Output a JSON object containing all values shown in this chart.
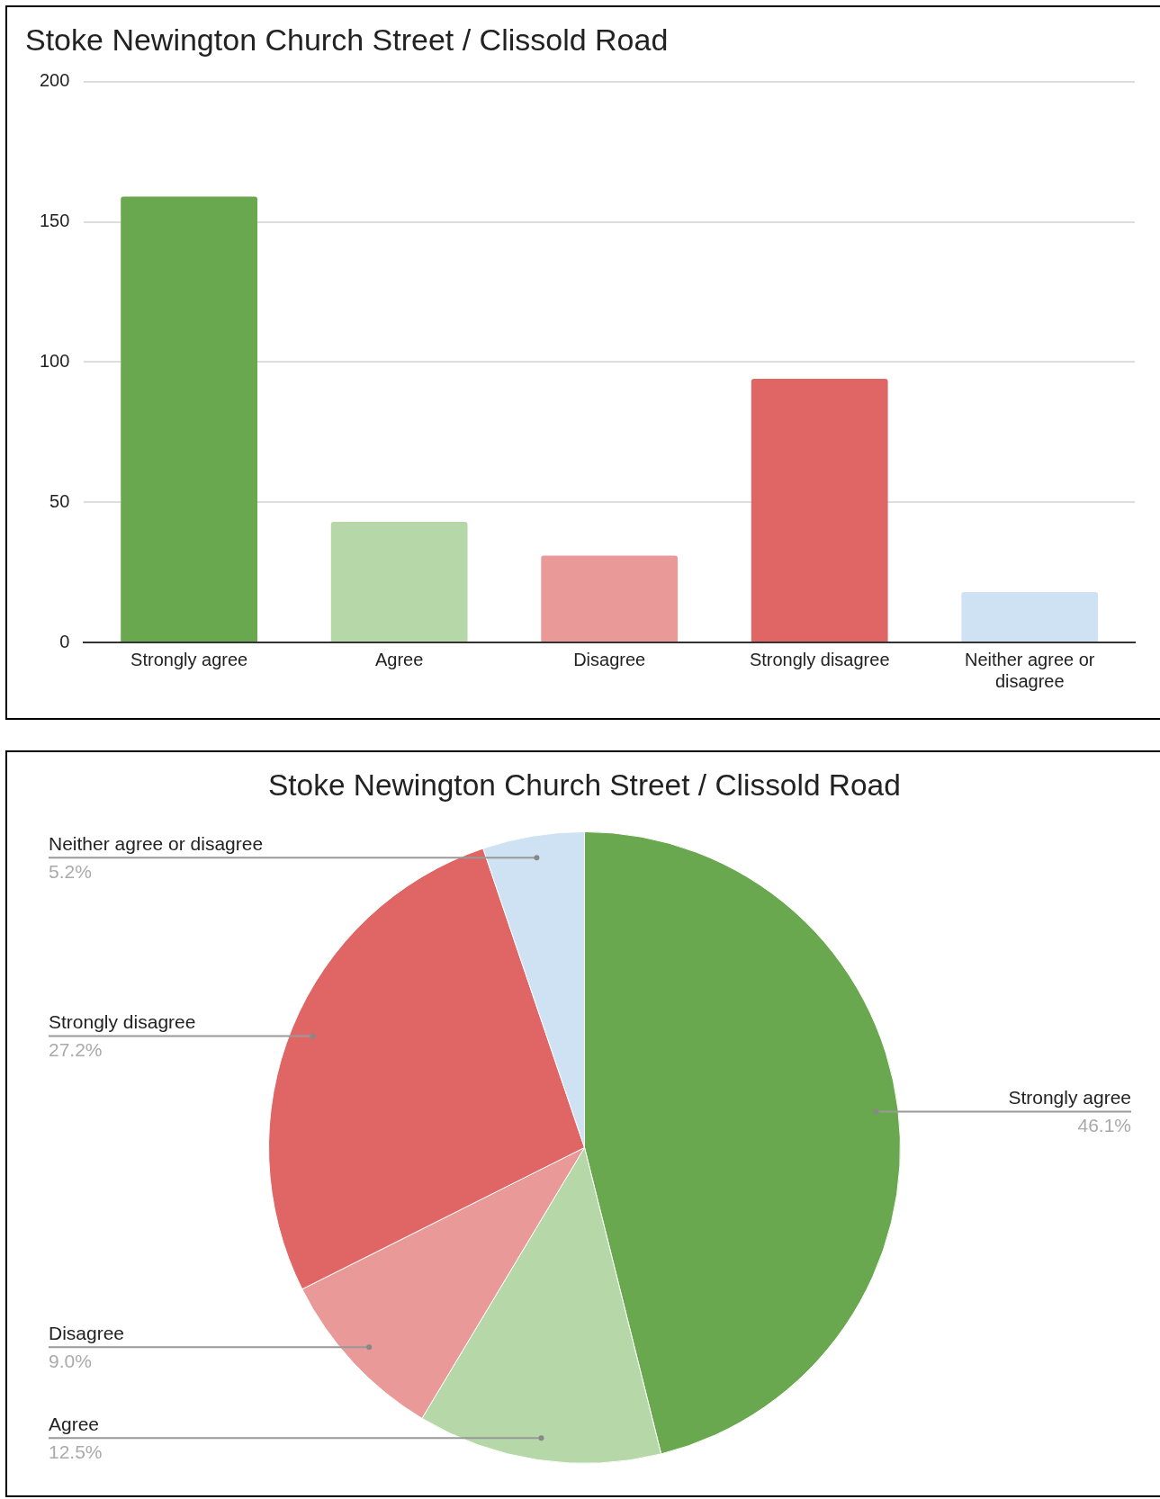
{
  "chart_data": [
    {
      "type": "bar",
      "title": "Stoke Newington Church Street / Clissold Road",
      "categories": [
        "Strongly agree",
        "Agree",
        "Disagree",
        "Strongly disagree",
        "Neither agree or disagree"
      ],
      "values": [
        159,
        43,
        31,
        94,
        18
      ],
      "colors": [
        "#6aa84f",
        "#b6d7a8",
        "#ea9999",
        "#e06666",
        "#cfe2f3"
      ],
      "ylim": [
        0,
        200
      ],
      "yticks": [
        0,
        50,
        100,
        150,
        200
      ],
      "grid": "y",
      "legend": false
    },
    {
      "type": "pie",
      "title": "Stoke Newington Church Street / Clissold Road",
      "categories": [
        "Strongly agree",
        "Agree",
        "Disagree",
        "Strongly disagree",
        "Neither agree or disagree"
      ],
      "values": [
        46.1,
        12.5,
        9.0,
        27.2,
        5.2
      ],
      "value_labels": [
        "46.1%",
        "12.5%",
        "9.0%",
        "27.2%",
        "5.2%"
      ],
      "colors": [
        "#6aa84f",
        "#b6d7a8",
        "#ea9999",
        "#e06666",
        "#cfe2f3"
      ],
      "legend": false
    }
  ]
}
